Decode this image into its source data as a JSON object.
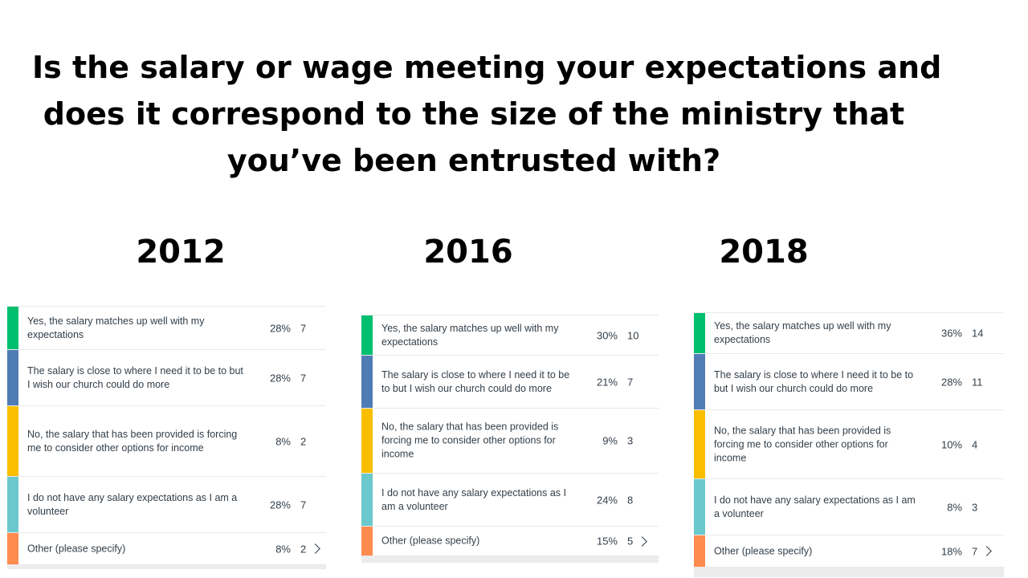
{
  "title_lines": [
    "Is the salary or wage meeting your expectations and",
    "does it correspond to the size of the ministry that",
    "you’ve been entrusted with?"
  ],
  "colors": {
    "yes": "#00bf6f",
    "close": "#507cb6",
    "no": "#f9be00",
    "volunteer": "#6bc8cd",
    "other": "#ff8b4f"
  },
  "chart_data": [
    {
      "type": "table",
      "year": "2012",
      "rows": [
        {
          "label": "Yes, the salary matches up well with my expectations",
          "percent": "28%",
          "count": "7"
        },
        {
          "label": "The salary is close to where I need it to be to but I wish our church could do more",
          "percent": "28%",
          "count": "7"
        },
        {
          "label": "No, the salary that has been provided is forcing me to consider other options for income",
          "percent": "8%",
          "count": "2"
        },
        {
          "label": "I do not have any salary expectations as I am a volunteer",
          "percent": "28%",
          "count": "7"
        },
        {
          "label": "Other (please specify)",
          "percent": "8%",
          "count": "2"
        }
      ]
    },
    {
      "type": "table",
      "year": "2016",
      "rows": [
        {
          "label": "Yes, the salary matches up well with my expectations",
          "percent": "30%",
          "count": "10"
        },
        {
          "label": "The salary is close to where I need it to be to but I wish our church could do more",
          "percent": "21%",
          "count": "7"
        },
        {
          "label": "No, the salary that has been provided is forcing me to consider other options for income",
          "percent": "9%",
          "count": "3"
        },
        {
          "label": "I do not have any salary expectations as I am a volunteer",
          "percent": "24%",
          "count": "8"
        },
        {
          "label": "Other (please specify)",
          "percent": "15%",
          "count": "5"
        }
      ]
    },
    {
      "type": "table",
      "year": "2018",
      "rows": [
        {
          "label": "Yes, the salary matches up well with my expectations",
          "percent": "36%",
          "count": "14"
        },
        {
          "label": "The salary is close to where I need it to be to but I wish our church could do more",
          "percent": "28%",
          "count": "11"
        },
        {
          "label": "No, the salary that has been provided is forcing me to consider other options for income",
          "percent": "10%",
          "count": "4"
        },
        {
          "label": "I do not have any salary expectations as I am a volunteer",
          "percent": "8%",
          "count": "3"
        },
        {
          "label": "Other (please specify)",
          "percent": "18%",
          "count": "7"
        }
      ]
    }
  ]
}
